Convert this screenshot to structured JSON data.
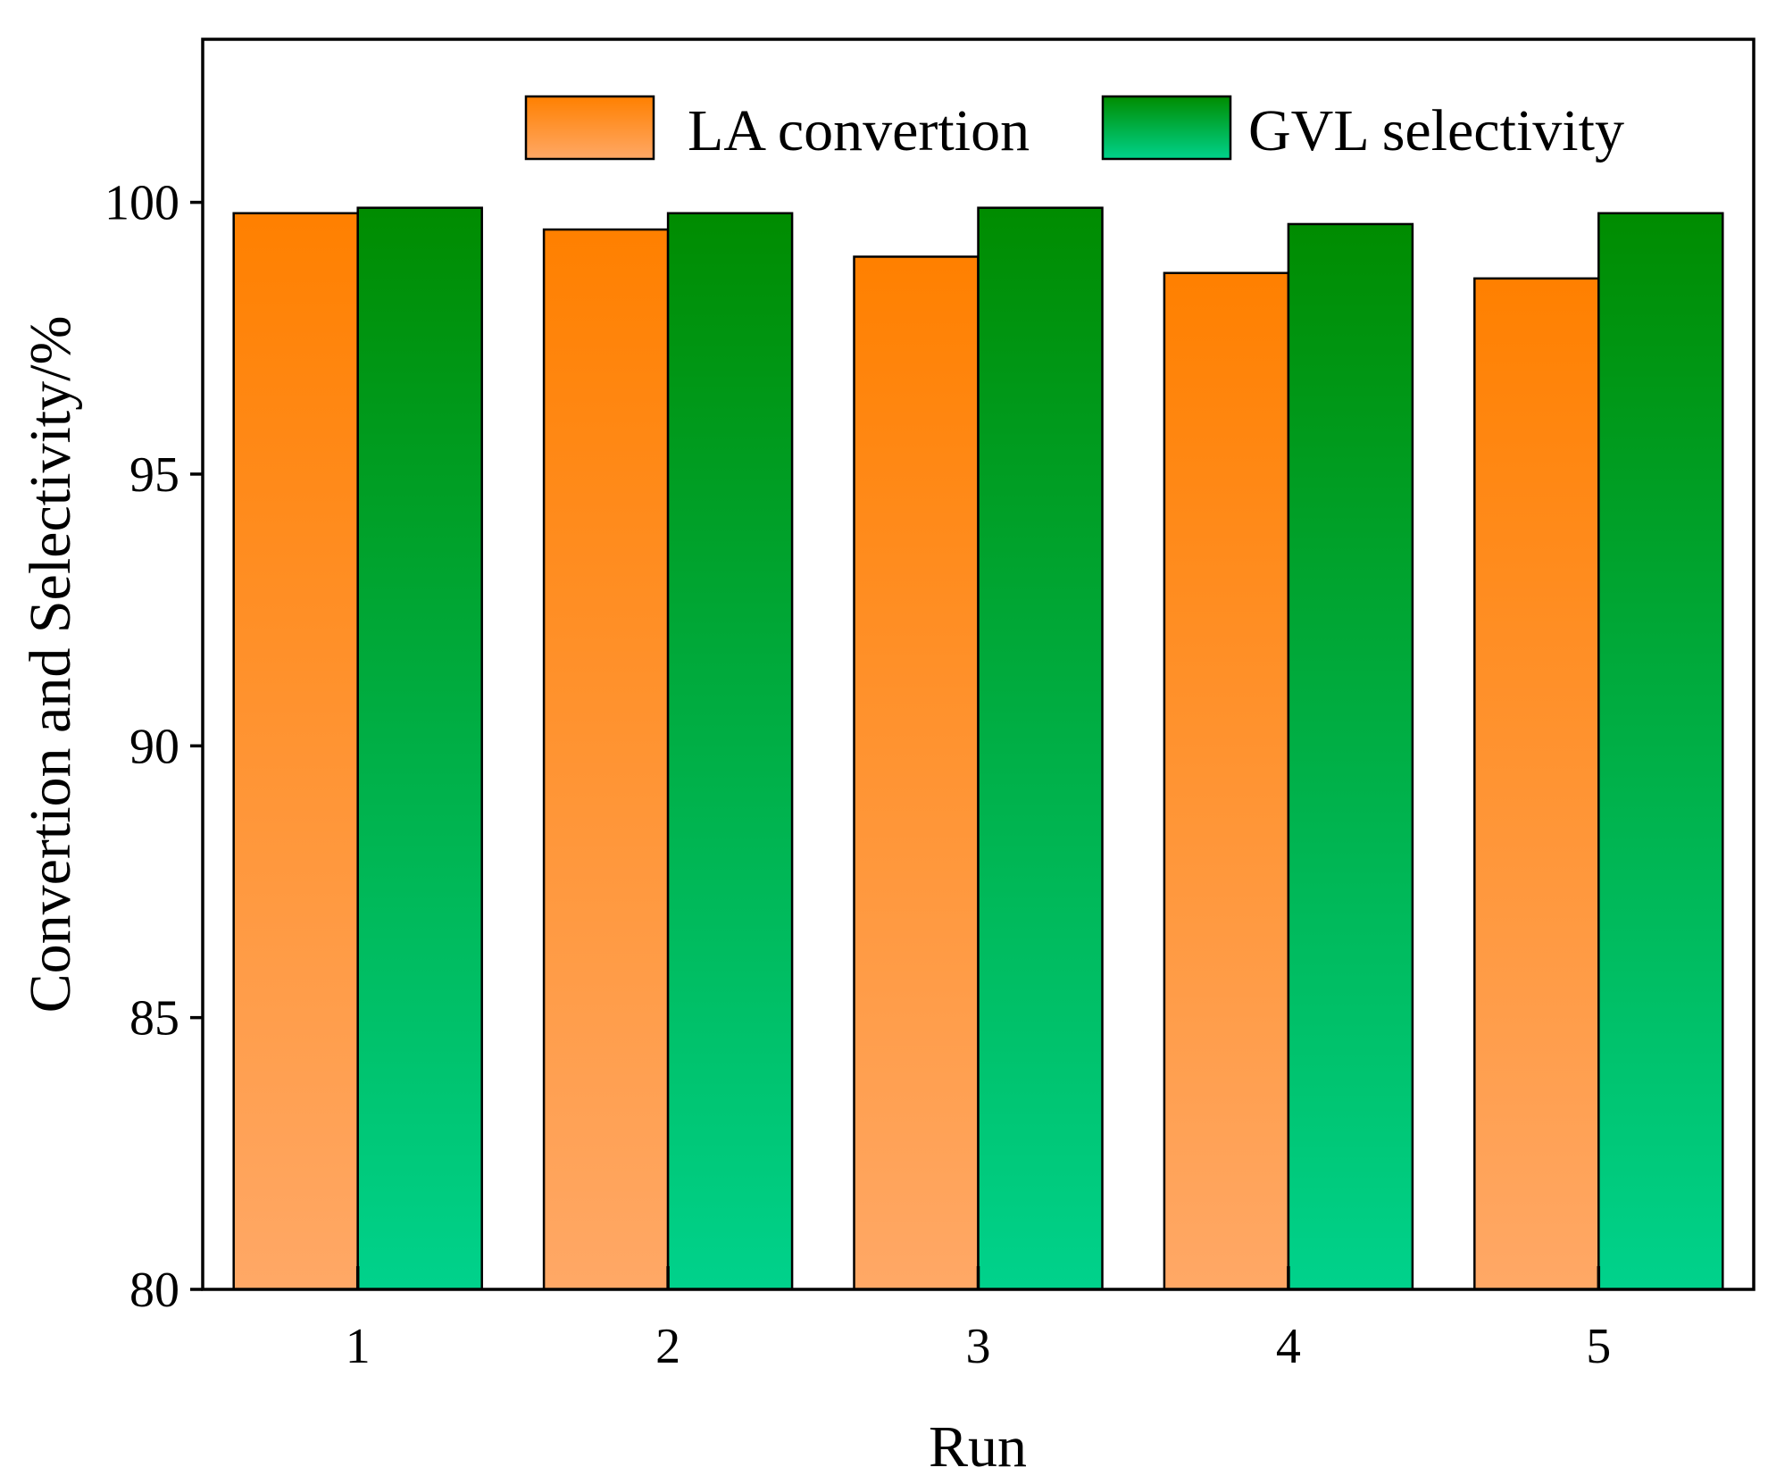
{
  "chart_data": {
    "type": "bar",
    "title": "",
    "xlabel": "Run",
    "ylabel": "Convertion and Selectivity/%",
    "categories": [
      "1",
      "2",
      "3",
      "4",
      "5"
    ],
    "ylim": [
      80,
      103
    ],
    "yticks": [
      80,
      85,
      90,
      95,
      100
    ],
    "grid": false,
    "legend_position": "top-right",
    "series": [
      {
        "name": "LA convertion",
        "values": [
          99.8,
          99.5,
          99.0,
          98.7,
          98.6
        ],
        "color_top": "#ff8000",
        "color_bottom": "#ffa866"
      },
      {
        "name": "GVL selectivity",
        "values": [
          99.9,
          99.8,
          99.9,
          99.6,
          99.8
        ],
        "color_top": "#008c00",
        "color_bottom": "#00d28c"
      }
    ]
  }
}
